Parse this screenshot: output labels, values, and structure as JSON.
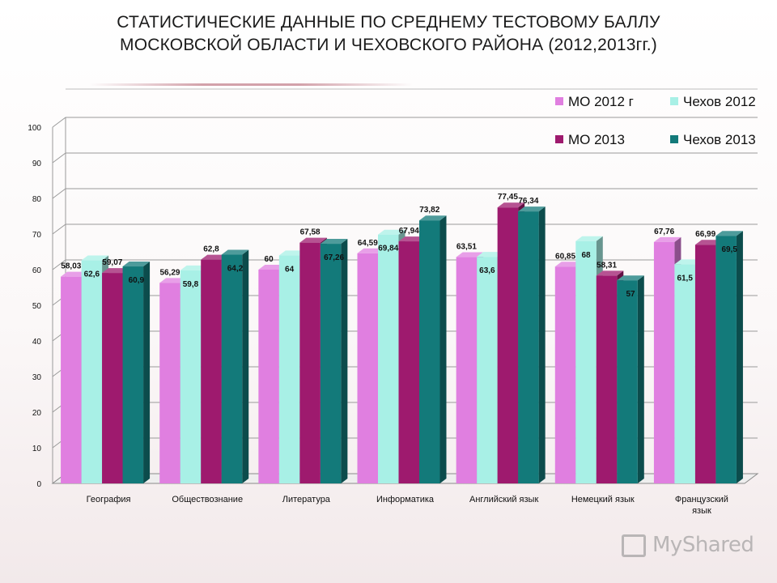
{
  "title": {
    "line1": "СТАТИСТИЧЕСКИЕ ДАННЫЕ ПО СРЕДНЕМУ ТЕСТОВОМУ БАЛЛУ",
    "line2": "МОСКОВСКОЙ ОБЛАСТИ И ЧЕХОВСКОГО РАЙОНА (2012,2013гг.)"
  },
  "watermark": {
    "text": "MyShared",
    "icon": "presentation-board-icon"
  },
  "chart_data": {
    "type": "bar",
    "style": "3d-clustered-column",
    "ylim": [
      0,
      100
    ],
    "yticks": [
      0,
      10,
      20,
      30,
      40,
      50,
      60,
      70,
      80,
      90,
      100
    ],
    "grid": true,
    "legend_position": "top-right",
    "categories": [
      [
        "География"
      ],
      [
        "Обществознание"
      ],
      [
        "Литература"
      ],
      [
        "Информатика"
      ],
      [
        "Английский язык"
      ],
      [
        "Немецкий язык"
      ],
      [
        "Французский",
        "язык"
      ]
    ],
    "series": [
      {
        "name": "МО 2012 г",
        "color": "#e07fe0",
        "values": [
          58.03,
          56.29,
          60,
          64.59,
          63.51,
          60.85,
          67.76
        ],
        "labels": [
          "58,03",
          "56,29",
          "60",
          "64,59",
          "63,51",
          "60,85",
          "67,76"
        ]
      },
      {
        "name": "Чехов 2012",
        "color": "#a8f0e6",
        "values": [
          62.6,
          59.8,
          64,
          69.84,
          63.6,
          68,
          61.5
        ],
        "labels": [
          "62,6",
          "59,8",
          "64",
          "69,84",
          "63,6",
          "68",
          "61,5"
        ]
      },
      {
        "name": "МО 2013",
        "color": "#9e1a6e",
        "values": [
          59.07,
          62.8,
          67.58,
          67.94,
          77.45,
          58.31,
          66.99
        ],
        "labels": [
          "59,07",
          "62,8",
          "67,58",
          "67,94",
          "77,45",
          "58,31",
          "66,99"
        ]
      },
      {
        "name": "Чехов 2013",
        "color": "#137a7a",
        "values": [
          60.9,
          64.2,
          67.26,
          73.82,
          76.34,
          57,
          69.5
        ],
        "labels": [
          "60,9",
          "64,2",
          "67,26",
          "73,82",
          "76,34",
          "57",
          "69,5"
        ]
      }
    ]
  }
}
